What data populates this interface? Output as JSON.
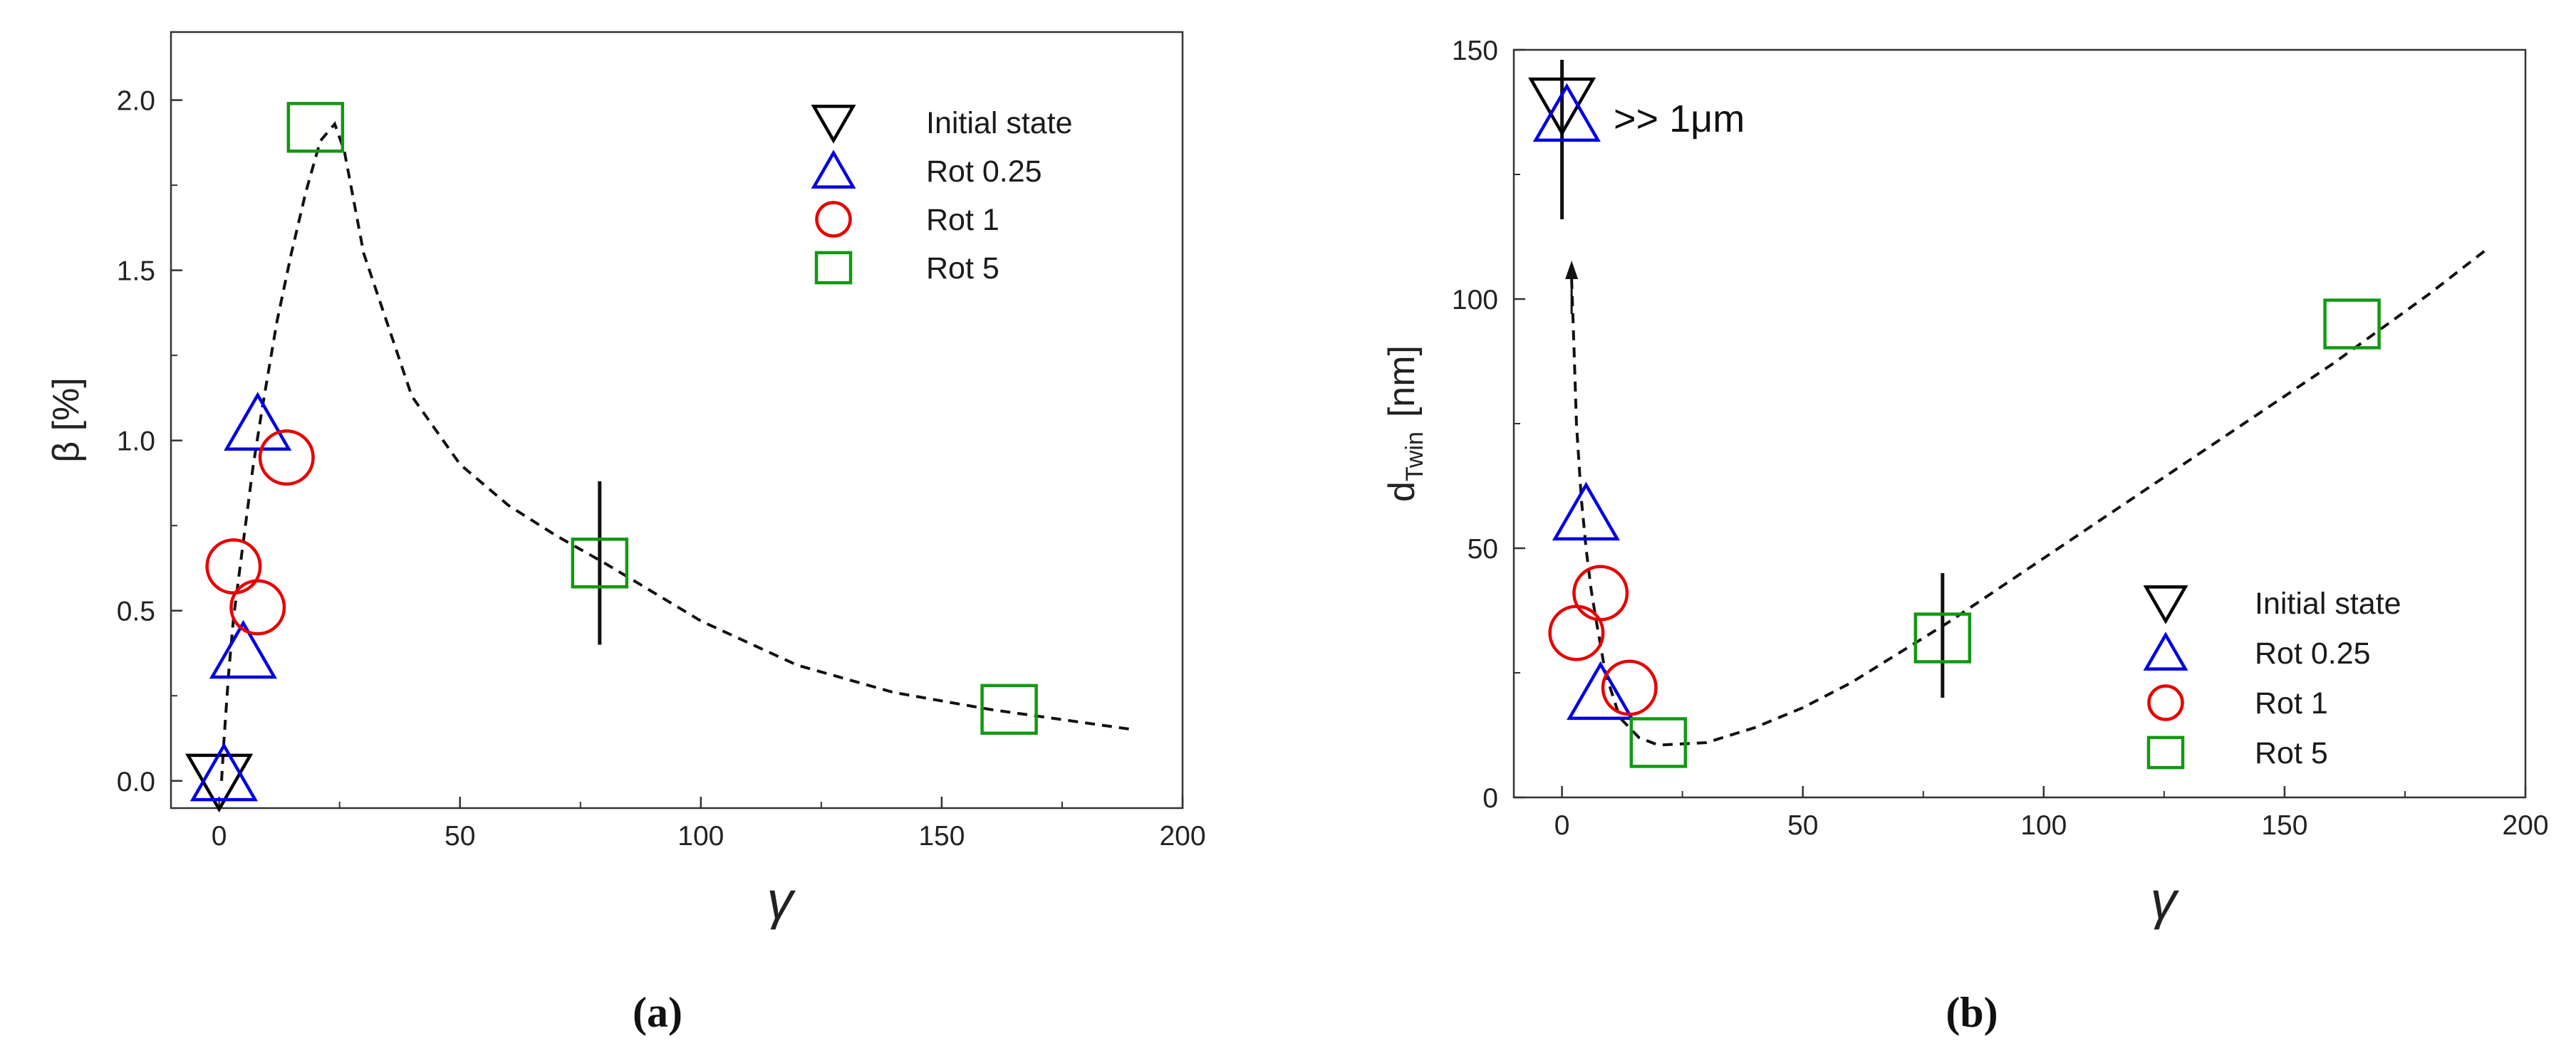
{
  "chart_data": [
    {
      "type": "scatter",
      "panel_label": "(a)",
      "xlabel": "γ",
      "ylabel": "β [%]",
      "xlim": [
        -10,
        200
      ],
      "ylim": [
        -0.08,
        2.2
      ],
      "xticks": [
        0,
        50,
        100,
        150,
        200
      ],
      "yticks": [
        0.0,
        0.5,
        1.0,
        1.5,
        2.0
      ],
      "xtick_labels": [
        "0",
        "50",
        "100",
        "150",
        "200"
      ],
      "ytick_labels": [
        "0.0",
        "0.5",
        "1.0",
        "1.5",
        "2.0"
      ],
      "grid": false,
      "legend_position": "top-right",
      "series": [
        {
          "name": "Initial state",
          "marker": "triangle-down",
          "color": "#000000",
          "x": [
            0
          ],
          "y": [
            0.0
          ]
        },
        {
          "name": "Rot 0.25",
          "marker": "triangle-up",
          "color": "#0000e0",
          "x": [
            1,
            5,
            8
          ],
          "y": [
            0.02,
            0.38,
            1.05
          ]
        },
        {
          "name": "Rot 1",
          "marker": "circle",
          "color": "#e60000",
          "x": [
            3,
            8,
            14
          ],
          "y": [
            0.63,
            0.51,
            0.95
          ]
        },
        {
          "name": "Rot 5",
          "marker": "square",
          "color": "#119911",
          "x": [
            20,
            79,
            164
          ],
          "y": [
            1.92,
            0.64,
            0.21
          ]
        }
      ],
      "error_bars": [
        {
          "x": 79,
          "y_low": 0.4,
          "y_high": 0.88
        }
      ],
      "trend_line": {
        "style": "dashed",
        "x": [
          0.5,
          1,
          2,
          3,
          5,
          7,
          9,
          12,
          15,
          18,
          21,
          24,
          26,
          30,
          40,
          50,
          60,
          70,
          80,
          100,
          120,
          140,
          160,
          175,
          190
        ],
        "y": [
          0.0,
          0.12,
          0.32,
          0.48,
          0.7,
          0.92,
          1.1,
          1.35,
          1.55,
          1.73,
          1.88,
          1.93,
          1.85,
          1.55,
          1.13,
          0.93,
          0.81,
          0.72,
          0.64,
          0.47,
          0.34,
          0.26,
          0.21,
          0.18,
          0.15
        ]
      }
    },
    {
      "type": "scatter",
      "panel_label": "(b)",
      "xlabel": "γ",
      "ylabel": "d",
      "ylabel_sub": "Twin",
      "ylabel_unit": "[nm]",
      "xlim": [
        -10,
        200
      ],
      "ylim": [
        0,
        150
      ],
      "xticks": [
        0,
        50,
        100,
        150,
        200
      ],
      "yticks": [
        0,
        50,
        100,
        150
      ],
      "xtick_labels": [
        "0",
        "50",
        "100",
        "150",
        "200"
      ],
      "ytick_labels": [
        "0",
        "50",
        "100",
        "150"
      ],
      "grid": false,
      "legend_position": "bottom-right",
      "annotation": ">> 1μm",
      "series": [
        {
          "name": "Initial state",
          "marker": "triangle-down",
          "color": "#000000",
          "x": [
            0
          ],
          "y": [
            139
          ]
        },
        {
          "name": "Rot 0.25",
          "marker": "triangle-up",
          "color": "#0000e0",
          "x": [
            1,
            5,
            8
          ],
          "y": [
            137,
            57,
            21
          ]
        },
        {
          "name": "Rot 1",
          "marker": "circle",
          "color": "#e60000",
          "x": [
            3,
            8,
            14
          ],
          "y": [
            33,
            41,
            22
          ]
        },
        {
          "name": "Rot 5",
          "marker": "square",
          "color": "#119911",
          "x": [
            20,
            79,
            164
          ],
          "y": [
            11,
            32,
            95
          ]
        }
      ],
      "error_bars": [
        {
          "x": 79,
          "y_low": 20,
          "y_high": 45
        },
        {
          "x": 0,
          "y_low": 116,
          "y_high": 148
        }
      ],
      "trend_line": {
        "style": "dashed",
        "x": [
          2,
          2.5,
          3,
          4,
          5,
          6,
          7,
          9,
          12,
          16,
          20,
          30,
          40,
          50,
          60,
          80,
          100,
          120,
          140,
          160,
          180,
          192
        ],
        "y": [
          104,
          90,
          75,
          60,
          50,
          42,
          36,
          25,
          16,
          12,
          10.5,
          11,
          14,
          18,
          23,
          35,
          48,
          61,
          74,
          87,
          101,
          110
        ]
      },
      "arrow": {
        "x": 2,
        "y_from": 97,
        "y_to": 106
      }
    }
  ]
}
